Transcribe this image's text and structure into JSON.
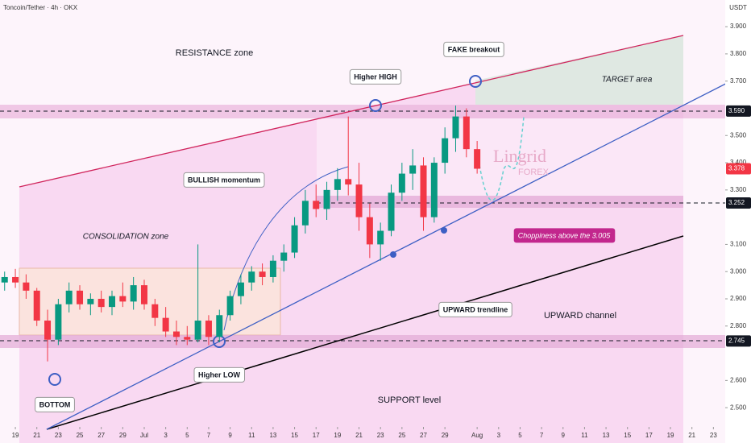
{
  "header": {
    "symbol": "Toncoin/Tether · 4h · OKX",
    "currency": "USDT"
  },
  "logo": {
    "name": "Lingrid",
    "sub": "FOREX"
  },
  "chart_data": {
    "type": "candlestick",
    "x": [
      -1,
      0,
      1,
      2,
      3,
      4,
      5,
      6,
      7,
      8,
      9,
      10,
      11,
      12,
      13,
      14,
      15,
      16,
      17,
      18,
      19,
      20,
      21,
      22,
      23,
      24,
      25,
      26,
      27,
      28,
      29,
      30,
      31,
      32,
      33,
      34,
      35,
      36,
      37,
      38,
      39,
      40,
      41,
      42,
      43
    ],
    "open": [
      2.96,
      2.98,
      2.96,
      2.93,
      2.82,
      2.75,
      2.88,
      2.93,
      2.88,
      2.9,
      2.87,
      2.91,
      2.89,
      2.95,
      2.88,
      2.83,
      2.78,
      2.76,
      2.75,
      2.82,
      2.76,
      2.84,
      2.91,
      2.96,
      3.0,
      2.98,
      3.04,
      3.07,
      3.17,
      3.26,
      3.23,
      3.3,
      3.34,
      3.32,
      3.2,
      3.1,
      3.15,
      3.29,
      3.36,
      3.39,
      3.2,
      3.4,
      3.49,
      3.57,
      3.45
    ],
    "high": [
      3.0,
      3.01,
      2.99,
      2.94,
      2.86,
      2.9,
      2.96,
      2.95,
      2.92,
      2.93,
      2.93,
      2.96,
      2.98,
      2.97,
      2.9,
      2.87,
      2.82,
      2.8,
      3.1,
      2.84,
      2.86,
      2.93,
      2.99,
      3.02,
      3.03,
      3.06,
      3.1,
      3.2,
      3.3,
      3.32,
      3.33,
      3.38,
      3.57,
      3.4,
      3.25,
      3.18,
      3.32,
      3.4,
      3.45,
      3.42,
      3.42,
      3.53,
      3.61,
      3.6,
      3.48
    ],
    "low": [
      2.93,
      2.94,
      2.9,
      2.8,
      2.67,
      2.73,
      2.85,
      2.86,
      2.84,
      2.85,
      2.84,
      2.87,
      2.86,
      2.86,
      2.8,
      2.76,
      2.73,
      2.73,
      2.74,
      2.73,
      2.74,
      2.82,
      2.88,
      2.93,
      2.95,
      2.96,
      3.0,
      3.05,
      3.14,
      3.2,
      3.19,
      3.26,
      3.28,
      3.15,
      3.05,
      3.04,
      3.13,
      3.26,
      3.3,
      3.15,
      3.18,
      3.36,
      3.44,
      3.42,
      3.36
    ],
    "close": [
      2.98,
      2.96,
      2.93,
      2.82,
      2.75,
      2.88,
      2.93,
      2.88,
      2.9,
      2.87,
      2.91,
      2.89,
      2.95,
      2.88,
      2.83,
      2.78,
      2.76,
      2.75,
      2.82,
      2.76,
      2.84,
      2.91,
      2.96,
      3.0,
      2.98,
      3.04,
      3.07,
      3.17,
      3.26,
      3.23,
      3.3,
      3.34,
      3.32,
      3.2,
      3.1,
      3.15,
      3.29,
      3.36,
      3.39,
      3.2,
      3.4,
      3.49,
      3.57,
      3.45,
      3.378
    ],
    "up_color": "#089981",
    "down_color": "#f23645",
    "xlim": [
      -1.43,
      66.1
    ],
    "xticks": [
      {
        "value": 0,
        "label": "19"
      },
      {
        "value": 2,
        "label": "21"
      },
      {
        "value": 4,
        "label": "23"
      },
      {
        "value": 6,
        "label": "25"
      },
      {
        "value": 8,
        "label": "27"
      },
      {
        "value": 10,
        "label": "29"
      },
      {
        "value": 12,
        "label": "Jul"
      },
      {
        "value": 14,
        "label": "3"
      },
      {
        "value": 16,
        "label": "5"
      },
      {
        "value": 18,
        "label": "7"
      },
      {
        "value": 20,
        "label": "9"
      },
      {
        "value": 22,
        "label": "11"
      },
      {
        "value": 24,
        "label": "13"
      },
      {
        "value": 26,
        "label": "15"
      },
      {
        "value": 28,
        "label": "17"
      },
      {
        "value": 30,
        "label": "19"
      },
      {
        "value": 32,
        "label": "21"
      },
      {
        "value": 34,
        "label": "23"
      },
      {
        "value": 36,
        "label": "25"
      },
      {
        "value": 38,
        "label": "27"
      },
      {
        "value": 40,
        "label": "29"
      },
      {
        "value": 43,
        "label": "Aug"
      },
      {
        "value": 45,
        "label": "3"
      },
      {
        "value": 47,
        "label": "5"
      },
      {
        "value": 49,
        "label": "7"
      },
      {
        "value": 51,
        "label": "9"
      },
      {
        "value": 53,
        "label": "11"
      },
      {
        "value": 55,
        "label": "13"
      },
      {
        "value": 57,
        "label": "15"
      },
      {
        "value": 59,
        "label": "17"
      },
      {
        "value": 61,
        "label": "19"
      },
      {
        "value": 63,
        "label": "21"
      },
      {
        "value": 65,
        "label": "23"
      }
    ],
    "ylim": [
      2.459,
      3.998
    ],
    "yticks": [
      {
        "value": 3.9,
        "label": "3.900"
      },
      {
        "value": 3.8,
        "label": "3.800"
      },
      {
        "value": 3.7,
        "label": "3.700"
      },
      {
        "value": 3.5,
        "label": "3.500"
      },
      {
        "value": 3.4,
        "label": "3.400"
      },
      {
        "value": 3.3,
        "label": "3.300"
      },
      {
        "value": 3.1,
        "label": "3.100"
      },
      {
        "value": 3.0,
        "label": "3.000"
      },
      {
        "value": 2.9,
        "label": "2.900"
      },
      {
        "value": 2.8,
        "label": "2.800"
      },
      {
        "value": 2.6,
        "label": "2.600"
      },
      {
        "value": 2.5,
        "label": "2.500"
      }
    ],
    "price_tags": [
      {
        "value": 3.59,
        "label": "3.590",
        "color": "#131722"
      },
      {
        "value": 3.378,
        "label": "3.378",
        "color": "#f23645"
      },
      {
        "value": 3.252,
        "label": "3.252",
        "color": "#131722"
      },
      {
        "value": 2.745,
        "label": "2.745",
        "color": "#131722"
      }
    ],
    "annotations": [
      "RESISTANCE zone",
      "Higher HIGH",
      "FAKE breakout",
      "TARGET area",
      "BULLISH momentum",
      "CONSOLIDATION zone",
      "Choppiness above the 3.005",
      "UPWARD trendline",
      "UPWARD channel",
      "Higher LOW",
      "BOTTOM",
      "SUPPORT level"
    ]
  }
}
